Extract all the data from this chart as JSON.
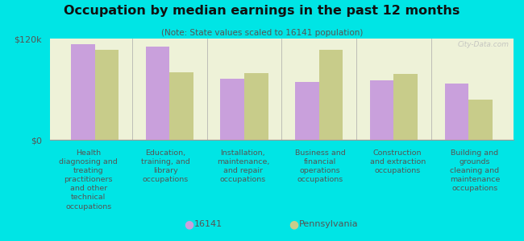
{
  "title": "Occupation by median earnings in the past 12 months",
  "subtitle": "(Note: State values scaled to 16141 population)",
  "background_color": "#00e5e5",
  "plot_bg_color": "#eef2d8",
  "bar_color_16141": "#c9a0dc",
  "bar_color_pa": "#c8cc8a",
  "ylim": [
    0,
    120000
  ],
  "ytick_labels": [
    "$0",
    "$120k"
  ],
  "categories": [
    "Health\ndiagnosing and\ntreating\npractitioners\nand other\ntechnical\noccupations",
    "Education,\ntraining, and\nlibrary\noccupations",
    "Installation,\nmaintenance,\nand repair\noccupations",
    "Business and\nfinancial\noperations\noccupations",
    "Construction\nand extraction\noccupations",
    "Building and\ngrounds\ncleaning and\nmaintenance\noccupations"
  ],
  "values_16141": [
    113000,
    110000,
    72000,
    69000,
    70000,
    67000
  ],
  "values_pa": [
    107000,
    80000,
    79000,
    107000,
    78000,
    48000
  ],
  "legend_labels": [
    "16141",
    "Pennsylvania"
  ],
  "watermark": "City-Data.com",
  "title_color": "#111111",
  "subtitle_color": "#555555",
  "label_color": "#555555",
  "tick_color": "#555555"
}
